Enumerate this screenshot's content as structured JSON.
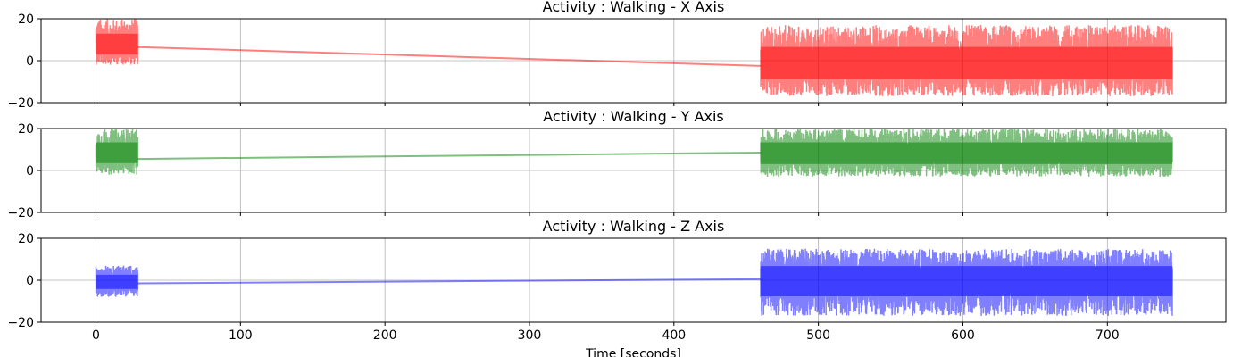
{
  "chart_data": [
    {
      "type": "line",
      "title": "Activity : Walking - X Axis",
      "xlabel": "",
      "ylabel": "",
      "xlim": [
        -38,
        782
      ],
      "ylim": [
        -20,
        20
      ],
      "xticks": [
        0,
        100,
        200,
        300,
        400,
        500,
        600,
        700
      ],
      "xtick_labels": [],
      "yticks": [
        -20,
        0,
        20
      ],
      "ytick_labels": [
        "−20",
        "0",
        "20"
      ],
      "grid": true,
      "color": "#ff0000",
      "series": [
        {
          "segments": [
            {
              "x_start": 0,
              "x_end": 29,
              "center": 7,
              "low": -2,
              "high": 20
            },
            {
              "x_start": 460,
              "x_end": 745,
              "center": -2,
              "low": -17,
              "high": 17
            }
          ],
          "connector": {
            "x": [
              29,
              460
            ],
            "y": [
              6.5,
              -2.5
            ]
          }
        }
      ]
    },
    {
      "type": "line",
      "title": "Activity : Walking - Y Axis",
      "xlabel": "",
      "ylabel": "",
      "xlim": [
        -38,
        782
      ],
      "ylim": [
        -20,
        20
      ],
      "xticks": [
        0,
        100,
        200,
        300,
        400,
        500,
        600,
        700
      ],
      "xtick_labels": [],
      "yticks": [
        -20,
        0,
        20
      ],
      "ytick_labels": [
        "−20",
        "0",
        "20"
      ],
      "grid": true,
      "color": "#008000",
      "series": [
        {
          "segments": [
            {
              "x_start": 0,
              "x_end": 29,
              "center": 8,
              "low": -2,
              "high": 20
            },
            {
              "x_start": 460,
              "x_end": 745,
              "center": 8,
              "low": -3,
              "high": 20
            }
          ],
          "connector": {
            "x": [
              29,
              460
            ],
            "y": [
              5.5,
              8.5
            ]
          }
        }
      ]
    },
    {
      "type": "line",
      "title": "Activity : Walking - Z Axis",
      "xlabel": "Time [seconds]",
      "ylabel": "",
      "xlim": [
        -38,
        782
      ],
      "ylim": [
        -20,
        20
      ],
      "xticks": [
        0,
        100,
        200,
        300,
        400,
        500,
        600,
        700
      ],
      "xtick_labels": [
        "0",
        "100",
        "200",
        "300",
        "400",
        "500",
        "600",
        "700"
      ],
      "yticks": [
        -20,
        0,
        20
      ],
      "ytick_labels": [
        "−20",
        "0",
        "20"
      ],
      "grid": true,
      "color": "#0000ff",
      "series": [
        {
          "segments": [
            {
              "x_start": 0,
              "x_end": 29,
              "center": -1,
              "low": -8,
              "high": 7
            },
            {
              "x_start": 460,
              "x_end": 745,
              "center": 0,
              "low": -17,
              "high": 15
            }
          ],
          "connector": {
            "x": [
              29,
              460
            ],
            "y": [
              -1.5,
              0.5
            ]
          }
        }
      ]
    }
  ]
}
